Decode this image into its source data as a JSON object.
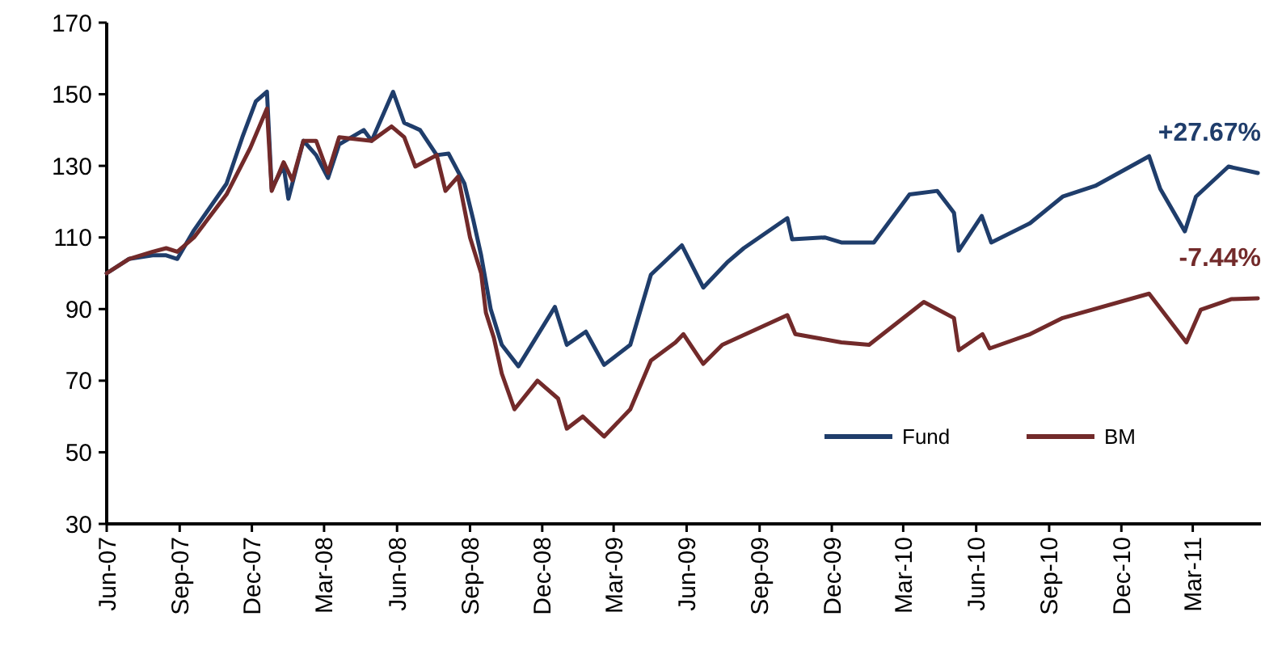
{
  "chart_data": {
    "type": "line",
    "xlim": [
      "2007-06-01",
      "2011-05-26"
    ],
    "ylim": [
      30,
      170
    ],
    "yticks": [
      30,
      50,
      70,
      90,
      110,
      130,
      150,
      170
    ],
    "xticks": [
      {
        "value": "2007-06-01",
        "label": "Jun-07"
      },
      {
        "value": "2007-09-01",
        "label": "Sep-07"
      },
      {
        "value": "2007-12-01",
        "label": "Dec-07"
      },
      {
        "value": "2008-03-01",
        "label": "Mar-08"
      },
      {
        "value": "2008-06-01",
        "label": "Jun-08"
      },
      {
        "value": "2008-09-01",
        "label": "Sep-08"
      },
      {
        "value": "2008-12-01",
        "label": "Dec-08"
      },
      {
        "value": "2009-03-01",
        "label": "Mar-09"
      },
      {
        "value": "2009-06-01",
        "label": "Jun-09"
      },
      {
        "value": "2009-09-01",
        "label": "Sep-09"
      },
      {
        "value": "2009-12-01",
        "label": "Dec-09"
      },
      {
        "value": "2010-03-01",
        "label": "Mar-10"
      },
      {
        "value": "2010-06-01",
        "label": "Jun-10"
      },
      {
        "value": "2010-09-01",
        "label": "Sep-10"
      },
      {
        "value": "2010-12-01",
        "label": "Dec-10"
      },
      {
        "value": "2011-03-01",
        "label": "Mar-11"
      }
    ],
    "grid": false,
    "legend": "bottom right",
    "marker": "none",
    "line_style": "solid",
    "annotations": [
      "+27.67%",
      "-7.44%"
    ],
    "series": [
      {
        "name": "Fund",
        "color": "#1f3d6b",
        "x": [
          "2007-06-01",
          "2007-06-29",
          "2007-07-29",
          "2007-08-15",
          "2007-08-29",
          "2007-09-19",
          "2007-10-30",
          "2007-11-19",
          "2007-12-06",
          "2007-12-20",
          "2007-12-26",
          "2008-01-10",
          "2008-01-16",
          "2008-02-04",
          "2008-02-20",
          "2008-03-06",
          "2008-03-20",
          "2008-04-20",
          "2008-04-30",
          "2008-05-27",
          "2008-06-10",
          "2008-06-30",
          "2008-07-21",
          "2008-08-05",
          "2008-08-25",
          "2008-09-05",
          "2008-09-15",
          "2008-09-27",
          "2008-10-11",
          "2008-11-01",
          "2008-12-17",
          "2009-01-01",
          "2009-01-25",
          "2009-02-17",
          "2009-03-22",
          "2009-04-17",
          "2009-05-26",
          "2009-06-22",
          "2009-07-22",
          "2009-08-12",
          "2009-10-06",
          "2009-10-12",
          "2009-11-22",
          "2009-12-13",
          "2010-01-23",
          "2010-03-09",
          "2010-04-13",
          "2010-05-04",
          "2010-05-10",
          "2010-06-08",
          "2010-06-20",
          "2010-08-08",
          "2010-09-18",
          "2010-10-29",
          "2011-01-05",
          "2011-01-19",
          "2011-02-19",
          "2011-03-05",
          "2011-04-15",
          "2011-05-22"
        ],
        "values": [
          100,
          104,
          105,
          105,
          104,
          112,
          125,
          138,
          148,
          150.7,
          123.6,
          130,
          120.8,
          137,
          133,
          126.6,
          136,
          140,
          137,
          150.7,
          142,
          140,
          133,
          133.4,
          125,
          115,
          105,
          90,
          80,
          74,
          90.6,
          80,
          83.7,
          74.4,
          80,
          99.6,
          107.8,
          96,
          103,
          107,
          115.4,
          109.5,
          110,
          108.6,
          108.6,
          122,
          123,
          116.9,
          106.3,
          116,
          108.6,
          114,
          121.4,
          124.4,
          132.7,
          123.6,
          111.7,
          121.4,
          129.8,
          128
        ]
      },
      {
        "name": "BM",
        "color": "#722a2a",
        "x": [
          "2007-06-01",
          "2007-06-29",
          "2007-07-29",
          "2007-08-15",
          "2007-08-29",
          "2007-09-19",
          "2007-10-30",
          "2007-11-29",
          "2007-12-20",
          "2007-12-26",
          "2008-01-10",
          "2008-01-21",
          "2008-02-04",
          "2008-02-20",
          "2008-03-06",
          "2008-03-20",
          "2008-04-30",
          "2008-05-25",
          "2008-06-10",
          "2008-06-24",
          "2008-07-21",
          "2008-08-01",
          "2008-08-17",
          "2008-09-01",
          "2008-09-15",
          "2008-09-21",
          "2008-10-01",
          "2008-10-11",
          "2008-10-27",
          "2008-11-25",
          "2008-12-21",
          "2009-01-01",
          "2009-01-21",
          "2009-02-17",
          "2009-03-22",
          "2009-04-17",
          "2009-05-18",
          "2009-05-28",
          "2009-06-22",
          "2009-07-16",
          "2009-10-06",
          "2009-10-16",
          "2009-12-13",
          "2010-01-17",
          "2010-03-27",
          "2010-05-04",
          "2010-05-10",
          "2010-06-09",
          "2010-06-18",
          "2010-08-08",
          "2010-09-18",
          "2011-01-05",
          "2011-02-21",
          "2011-03-11",
          "2011-04-19",
          "2011-05-22"
        ],
        "values": [
          100,
          104,
          106,
          107,
          106,
          110,
          122,
          135,
          146,
          123,
          131,
          126,
          137,
          137,
          128,
          138,
          137,
          141,
          138,
          129.8,
          133,
          123,
          127,
          110,
          100,
          89,
          82,
          72,
          62,
          70,
          65,
          56.6,
          60,
          54.4,
          62,
          75.6,
          80.7,
          83,
          74.7,
          80,
          88.3,
          83,
          80.7,
          80,
          92,
          87.5,
          78.5,
          83,
          79,
          83,
          87.5,
          94.3,
          80.7,
          89.8,
          92.8,
          93
        ]
      }
    ]
  }
}
